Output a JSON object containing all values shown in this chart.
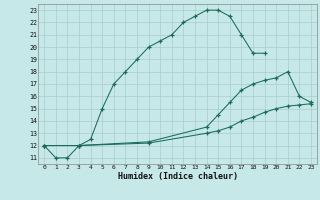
{
  "xlabel": "Humidex (Indice chaleur)",
  "background_color": "#c6e8e8",
  "line_color": "#1a6b5a",
  "grid_color": "#a8cccc",
  "xlim": [
    -0.5,
    23.5
  ],
  "ylim": [
    10.5,
    23.5
  ],
  "xticks": [
    0,
    1,
    2,
    3,
    4,
    5,
    6,
    7,
    8,
    9,
    10,
    11,
    12,
    13,
    14,
    15,
    16,
    17,
    18,
    19,
    20,
    21,
    22,
    23
  ],
  "yticks": [
    11,
    12,
    13,
    14,
    15,
    16,
    17,
    18,
    19,
    20,
    21,
    22,
    23
  ],
  "line1_x": [
    0,
    1,
    2,
    3,
    4,
    5,
    6,
    7,
    8,
    9,
    10,
    11,
    12,
    13,
    14,
    15,
    16,
    17,
    18,
    19
  ],
  "line1_y": [
    12,
    11,
    11,
    12,
    12.5,
    15,
    17,
    18,
    19,
    20,
    20.5,
    21,
    22,
    22.5,
    23,
    23,
    22.5,
    21,
    19.5,
    19.5
  ],
  "line2_x": [
    0,
    3,
    9,
    14,
    15,
    16,
    17,
    18,
    19,
    20,
    21,
    22,
    23
  ],
  "line2_y": [
    12,
    12,
    12.3,
    13.5,
    14.5,
    15.5,
    16.5,
    17,
    17.3,
    17.5,
    18,
    16,
    15.5
  ],
  "line3_x": [
    0,
    3,
    9,
    14,
    15,
    16,
    17,
    18,
    19,
    20,
    21,
    22,
    23
  ],
  "line3_y": [
    12,
    12,
    12.2,
    13,
    13.2,
    13.5,
    14,
    14.3,
    14.7,
    15,
    15.2,
    15.3,
    15.4
  ]
}
